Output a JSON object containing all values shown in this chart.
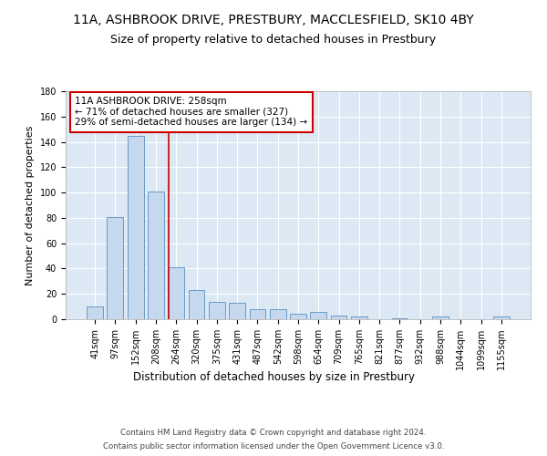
{
  "title_line1": "11A, ASHBROOK DRIVE, PRESTBURY, MACCLESFIELD, SK10 4BY",
  "title_line2": "Size of property relative to detached houses in Prestbury",
  "xlabel": "Distribution of detached houses by size in Prestbury",
  "ylabel": "Number of detached properties",
  "categories": [
    "41sqm",
    "97sqm",
    "152sqm",
    "208sqm",
    "264sqm",
    "320sqm",
    "375sqm",
    "431sqm",
    "487sqm",
    "542sqm",
    "598sqm",
    "654sqm",
    "709sqm",
    "765sqm",
    "821sqm",
    "877sqm",
    "932sqm",
    "988sqm",
    "1044sqm",
    "1099sqm",
    "1155sqm"
  ],
  "values": [
    10,
    81,
    145,
    101,
    41,
    23,
    14,
    13,
    8,
    8,
    4,
    6,
    3,
    2,
    0,
    1,
    0,
    2,
    0,
    0,
    2
  ],
  "bar_color": "#c5d8ed",
  "bar_edge_color": "#5a8fc0",
  "bar_width": 0.8,
  "property_line_x": 3.62,
  "annotation_text": "11A ASHBROOK DRIVE: 258sqm\n← 71% of detached houses are smaller (327)\n29% of semi-detached houses are larger (134) →",
  "annotation_box_color": "#ffffff",
  "annotation_box_edge": "#cc0000",
  "property_line_color": "#cc0000",
  "ylim": [
    0,
    180
  ],
  "yticks": [
    0,
    20,
    40,
    60,
    80,
    100,
    120,
    140,
    160,
    180
  ],
  "footer_line1": "Contains HM Land Registry data © Crown copyright and database right 2024.",
  "footer_line2": "Contains public sector information licensed under the Open Government Licence v3.0.",
  "background_color": "#dce9f5",
  "grid_color": "#ffffff",
  "title_fontsize": 10,
  "subtitle_fontsize": 9,
  "tick_fontsize": 7,
  "ylabel_fontsize": 8,
  "xlabel_fontsize": 8.5,
  "footer_fontsize": 6.2
}
